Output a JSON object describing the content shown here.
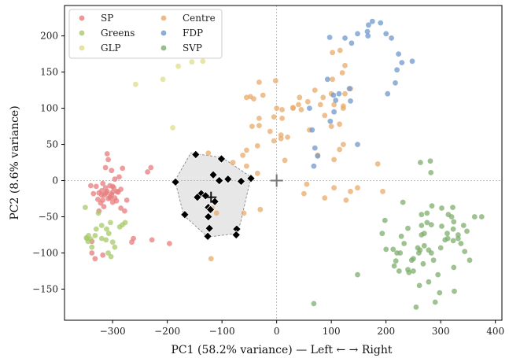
{
  "chart_data": {
    "type": "scatter",
    "xlabel": "PC1 (58.2% variance) — Left ← → Right",
    "ylabel": "PC2 (8.6% variance)",
    "xlim": [
      -388,
      412
    ],
    "ylim": [
      -193,
      242
    ],
    "xticks": [
      -300,
      -200,
      -100,
      0,
      100,
      200,
      300,
      400
    ],
    "yticks": [
      -150,
      -100,
      -50,
      0,
      50,
      100,
      150,
      200
    ],
    "grid": false,
    "reference_lines": {
      "x": 0,
      "y": 0
    },
    "legend_placement": "top-left",
    "legend_columns": 2,
    "series": [
      {
        "name": "SP",
        "color": "#e77c7c",
        "points": [
          [
            -310,
            37
          ],
          [
            -308,
            29
          ],
          [
            -313,
            18
          ],
          [
            -302,
            14
          ],
          [
            -282,
            17
          ],
          [
            -288,
            5
          ],
          [
            -296,
            2
          ],
          [
            -305,
            -7
          ],
          [
            -313,
            -10
          ],
          [
            -318,
            -4
          ],
          [
            -330,
            -8
          ],
          [
            -340,
            -7
          ],
          [
            -320,
            -14
          ],
          [
            -310,
            -15
          ],
          [
            -300,
            -16
          ],
          [
            -325,
            -17
          ],
          [
            -335,
            -18
          ],
          [
            -315,
            -20
          ],
          [
            -305,
            -22
          ],
          [
            -298,
            -10
          ],
          [
            -292,
            -15
          ],
          [
            -285,
            -12
          ],
          [
            -318,
            -27
          ],
          [
            -308,
            -25
          ],
          [
            -300,
            -30
          ],
          [
            -293,
            -28
          ],
          [
            -322,
            -31
          ],
          [
            -316,
            -36
          ],
          [
            -325,
            -42
          ],
          [
            -285,
            -38
          ],
          [
            -278,
            -42
          ],
          [
            -262,
            -80
          ],
          [
            -265,
            -85
          ],
          [
            -338,
            -84
          ],
          [
            -338,
            -100
          ],
          [
            -318,
            -103
          ],
          [
            -332,
            -108
          ],
          [
            -196,
            -87
          ],
          [
            -274,
            -27
          ],
          [
            -228,
            -82
          ],
          [
            -236,
            12
          ],
          [
            -230,
            18
          ],
          [
            -327,
            -26
          ],
          [
            -300,
            -8
          ],
          [
            -312,
            -17
          ],
          [
            -302,
            -19
          ],
          [
            -290,
            -16
          ],
          [
            -296,
            -24
          ],
          [
            -304,
            -24
          ],
          [
            -320,
            -20
          ]
        ]
      },
      {
        "name": "Greens",
        "color": "#a8c96a",
        "points": [
          [
            -350,
            -37
          ],
          [
            -326,
            -45
          ],
          [
            -320,
            -62
          ],
          [
            -330,
            -67
          ],
          [
            -304,
            -58
          ],
          [
            -348,
            -79
          ],
          [
            -345,
            -84
          ],
          [
            -338,
            -92
          ],
          [
            -320,
            -80
          ],
          [
            -312,
            -82
          ],
          [
            -332,
            -76
          ],
          [
            -340,
            -81
          ],
          [
            -347,
            -80
          ],
          [
            -303,
            -105
          ],
          [
            -308,
            -100
          ],
          [
            -344,
            -76
          ],
          [
            -287,
            -64
          ],
          [
            -277,
            -58
          ],
          [
            -282,
            -61
          ],
          [
            -296,
            -92
          ],
          [
            -300,
            -85
          ],
          [
            -307,
            -73
          ],
          [
            -311,
            -67
          ]
        ]
      },
      {
        "name": "GLP",
        "color": "#dddd88",
        "points": [
          [
            -258,
            133
          ],
          [
            -208,
            140
          ],
          [
            -180,
            158
          ],
          [
            -155,
            164
          ],
          [
            -135,
            165
          ],
          [
            -190,
            73
          ]
        ]
      },
      {
        "name": "Centre",
        "color": "#e8a96a",
        "points": [
          [
            42,
            115
          ],
          [
            40,
            105
          ],
          [
            57,
            109
          ],
          [
            30,
            101
          ],
          [
            45,
            98
          ],
          [
            -25,
            118
          ],
          [
            -32,
            136
          ],
          [
            -55,
            115
          ],
          [
            -48,
            116
          ],
          [
            -42,
            113
          ],
          [
            -32,
            86
          ],
          [
            10,
            98
          ],
          [
            0,
            100
          ],
          [
            10,
            86
          ],
          [
            -5,
            88
          ],
          [
            8,
            63
          ],
          [
            -12,
            68
          ],
          [
            -32,
            76
          ],
          [
            -45,
            75
          ],
          [
            -5,
            55
          ],
          [
            8,
            58
          ],
          [
            -35,
            48
          ],
          [
            -55,
            42
          ],
          [
            120,
            149
          ],
          [
            122,
            103
          ],
          [
            105,
            105
          ],
          [
            100,
            75
          ],
          [
            88,
            90
          ],
          [
            102,
            140
          ],
          [
            102,
            177
          ],
          [
            116,
            180
          ],
          [
            125,
            159
          ],
          [
            135,
            127
          ],
          [
            125,
            120
          ],
          [
            122,
            100
          ],
          [
            115,
            78
          ],
          [
            122,
            50
          ],
          [
            105,
            29
          ],
          [
            105,
            -10
          ],
          [
            88,
            -24
          ],
          [
            127,
            -27
          ],
          [
            135,
            -15
          ],
          [
            148,
            -10
          ],
          [
            194,
            -15
          ],
          [
            185,
            23
          ],
          [
            75,
            35
          ],
          [
            55,
            -5
          ],
          [
            50,
            -18
          ],
          [
            115,
            43
          ],
          [
            -30,
            -40
          ],
          [
            -60,
            -45
          ],
          [
            -110,
            -45
          ],
          [
            -118,
            -38
          ],
          [
            -125,
            38
          ],
          [
            -80,
            25
          ],
          [
            -62,
            35
          ],
          [
            -55,
            20
          ],
          [
            -35,
            10
          ],
          [
            -2,
            138
          ],
          [
            15,
            28
          ],
          [
            -120,
            -108
          ],
          [
            60,
            70
          ],
          [
            85,
            115
          ],
          [
            100,
            120
          ],
          [
            70,
            125
          ],
          [
            80,
            105
          ],
          [
            20,
            60
          ],
          [
            30,
            100
          ]
        ]
      },
      {
        "name": "FDP",
        "color": "#6d98cd",
        "points": [
          [
            97,
            198
          ],
          [
            125,
            197
          ],
          [
            137,
            190
          ],
          [
            148,
            203
          ],
          [
            167,
            200
          ],
          [
            168,
            215
          ],
          [
            175,
            220
          ],
          [
            166,
            206
          ],
          [
            190,
            218
          ],
          [
            200,
            203
          ],
          [
            210,
            197
          ],
          [
            223,
            175
          ],
          [
            229,
            163
          ],
          [
            248,
            165
          ],
          [
            220,
            153
          ],
          [
            217,
            135
          ],
          [
            203,
            120
          ],
          [
            93,
            140
          ],
          [
            114,
            120
          ],
          [
            133,
            127
          ],
          [
            108,
            111
          ],
          [
            98,
            82
          ],
          [
            104,
            118
          ],
          [
            65,
            70
          ],
          [
            70,
            45
          ],
          [
            75,
            34
          ],
          [
            60,
            100
          ],
          [
            105,
            95
          ],
          [
            135,
            110
          ],
          [
            148,
            50
          ],
          [
            68,
            20
          ]
        ]
      },
      {
        "name": "SVP",
        "color": "#7ead6c",
        "points": [
          [
            263,
            25
          ],
          [
            281,
            27
          ],
          [
            282,
            11
          ],
          [
            231,
            -30
          ],
          [
            265,
            -47
          ],
          [
            275,
            -45
          ],
          [
            284,
            -35
          ],
          [
            302,
            -38
          ],
          [
            314,
            -47
          ],
          [
            322,
            -37
          ],
          [
            320,
            -50
          ],
          [
            324,
            -57
          ],
          [
            342,
            -62
          ],
          [
            362,
            -50
          ],
          [
            375,
            -50
          ],
          [
            348,
            -70
          ],
          [
            332,
            -75
          ],
          [
            323,
            -67
          ],
          [
            312,
            -73
          ],
          [
            302,
            -63
          ],
          [
            283,
            -61
          ],
          [
            275,
            -58
          ],
          [
            265,
            -62
          ],
          [
            265,
            -75
          ],
          [
            270,
            -73
          ],
          [
            240,
            -66
          ],
          [
            228,
            -77
          ],
          [
            198,
            -55
          ],
          [
            193,
            -73
          ],
          [
            200,
            -95
          ],
          [
            220,
            -100
          ],
          [
            218,
            -111
          ],
          [
            215,
            -118
          ],
          [
            224,
            -125
          ],
          [
            240,
            -123
          ],
          [
            250,
            -108
          ],
          [
            262,
            -96
          ],
          [
            270,
            -90
          ],
          [
            283,
            -100
          ],
          [
            300,
            -93
          ],
          [
            313,
            -80
          ],
          [
            323,
            -83
          ],
          [
            337,
            -87
          ],
          [
            344,
            -98
          ],
          [
            353,
            -110
          ],
          [
            324,
            -120
          ],
          [
            295,
            -130
          ],
          [
            278,
            -140
          ],
          [
            261,
            -145
          ],
          [
            250,
            -125
          ],
          [
            268,
            -115
          ],
          [
            233,
            -87
          ],
          [
            213,
            -95
          ],
          [
            247,
            -110
          ],
          [
            258,
            -93
          ],
          [
            298,
            -155
          ],
          [
            325,
            -153
          ],
          [
            255,
            -175
          ],
          [
            290,
            -168
          ],
          [
            148,
            -130
          ],
          [
            68,
            -170
          ],
          [
            242,
            -127
          ],
          [
            287,
            -110
          ],
          [
            308,
            -82
          ],
          [
            332,
            -80
          ],
          [
            260,
            -100
          ],
          [
            278,
            -96
          ],
          [
            226,
            -100
          ]
        ]
      }
    ],
    "highlight_points": [
      [
        -148,
        36
      ],
      [
        -101,
        30
      ],
      [
        -116,
        8
      ],
      [
        -89,
        2
      ],
      [
        -185,
        -2
      ],
      [
        -138,
        -18
      ],
      [
        -145,
        -23
      ],
      [
        -130,
        -21
      ],
      [
        -113,
        -29
      ],
      [
        -125,
        -37
      ],
      [
        -121,
        -40
      ],
      [
        -125,
        -50
      ],
      [
        -168,
        -47
      ],
      [
        -73,
        -67
      ],
      [
        -74,
        -75
      ],
      [
        -123,
        -66
      ],
      [
        -126,
        -77
      ],
      [
        -105,
        0
      ],
      [
        -47,
        3
      ],
      [
        -65,
        -1
      ]
    ],
    "hull": [
      [
        -186,
        0
      ],
      [
        -157,
        38
      ],
      [
        -100,
        32
      ],
      [
        -47,
        5
      ],
      [
        -66,
        -58
      ],
      [
        -73,
        -73
      ],
      [
        -126,
        -78
      ],
      [
        -170,
        -48
      ]
    ],
    "centroid_plus": [
      -120,
      -23
    ],
    "origin_plus": [
      0,
      0
    ]
  }
}
